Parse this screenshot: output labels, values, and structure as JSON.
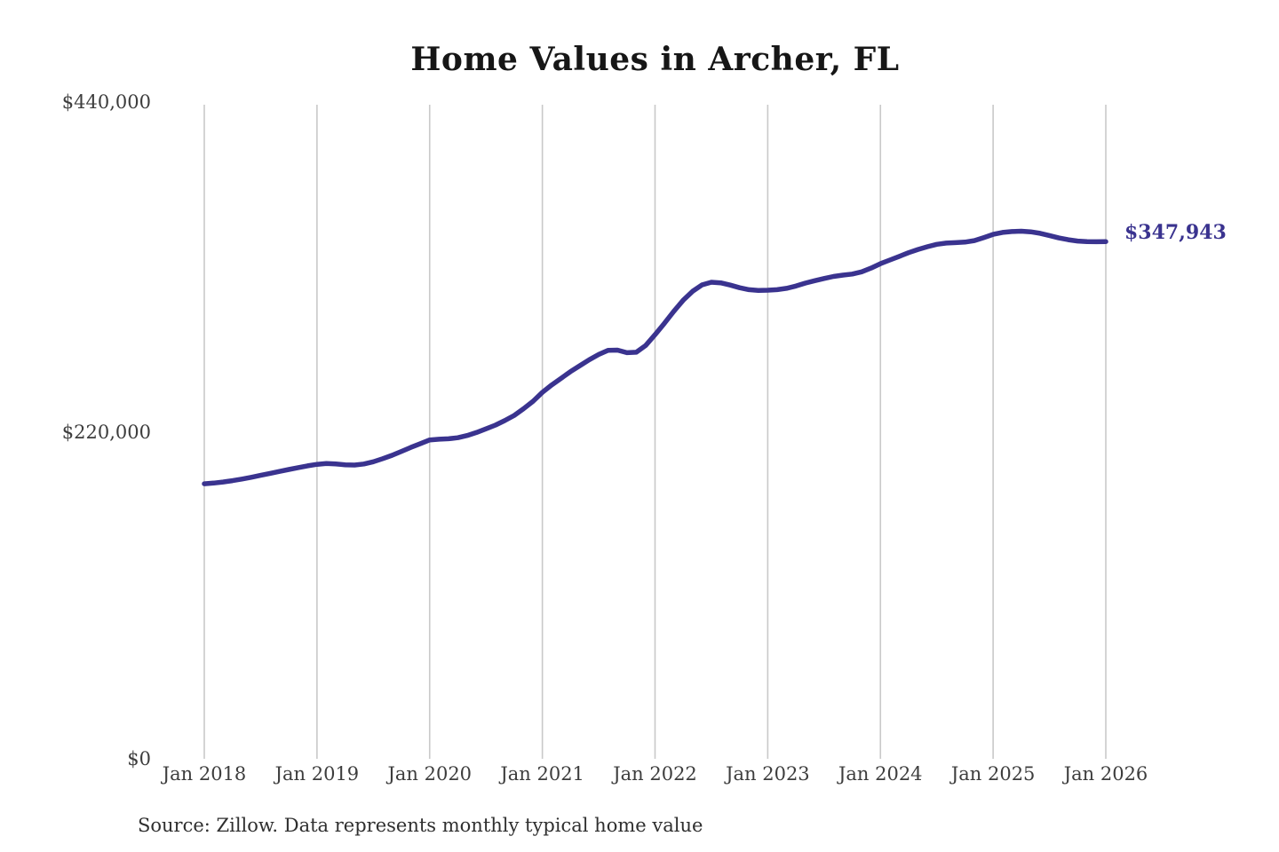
{
  "chart_data": {
    "type": "line",
    "title": "Home Values in Archer, FL",
    "xlabel": "",
    "ylabel": "",
    "ylim": [
      0,
      440000
    ],
    "y_tick_labels": [
      "$0",
      "$220,000",
      "$440,000"
    ],
    "x_tick_labels": [
      "Jan 2018",
      "Jan 2019",
      "Jan 2020",
      "Jan 2021",
      "Jan 2022",
      "Jan 2023",
      "Jan 2024",
      "Jan 2025",
      "Jan 2026"
    ],
    "grid": "vertical-gridlines-only",
    "legend": "none",
    "line_color": "#3a338f",
    "gridline_color": "#c9c9c9",
    "end_label": "$347,943",
    "latest_value": 347943,
    "series": [
      {
        "name": "Monthly typical home value",
        "start_month": "2018-01",
        "frequency": "monthly",
        "values": [
          185000,
          185500,
          186200,
          187100,
          188200,
          189400,
          190700,
          192000,
          193300,
          194600,
          195900,
          197100,
          198100,
          198600,
          198400,
          197800,
          197600,
          198300,
          199800,
          201900,
          204200,
          206800,
          209500,
          212000,
          214500,
          215000,
          215300,
          216000,
          217500,
          219500,
          222000,
          224500,
          227500,
          231000,
          235500,
          240500,
          246500,
          251500,
          256000,
          260500,
          264500,
          268500,
          272000,
          274800,
          274900,
          273200,
          273500,
          278000,
          285300,
          293000,
          301000,
          308500,
          314500,
          318800,
          320600,
          320200,
          318700,
          316900,
          315600,
          315100,
          315200,
          315600,
          316500,
          318000,
          320000,
          321600,
          323100,
          324500,
          325400,
          326100,
          327600,
          330100,
          333100,
          335500,
          338000,
          340500,
          342600,
          344500,
          346100,
          346900,
          347200,
          347600,
          348600,
          350600,
          352800,
          354100,
          354700,
          354900,
          354500,
          353500,
          352000,
          350400,
          349200,
          348300,
          347900,
          347800,
          347943
        ]
      }
    ],
    "source": "Source: Zillow. Data represents monthly typical home value"
  }
}
